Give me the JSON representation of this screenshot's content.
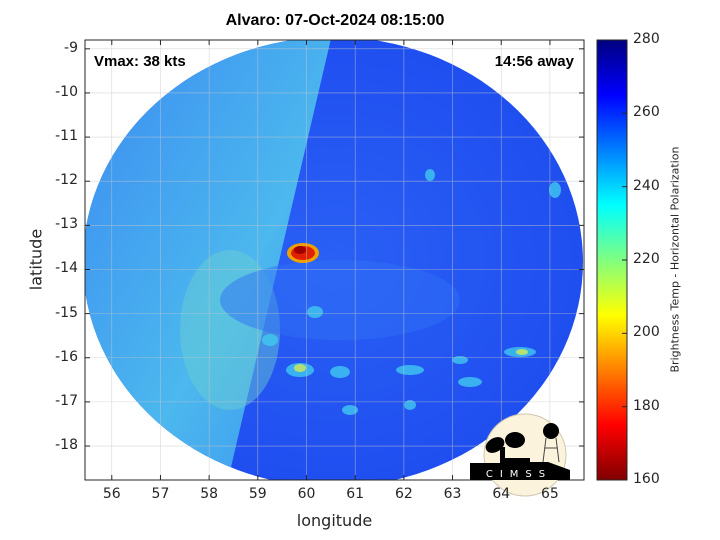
{
  "title": "Alvaro: 07-Oct-2024 08:15:00",
  "annotations": {
    "vmax": "Vmax: 38 kts",
    "time_away": "14:56 away"
  },
  "axes": {
    "xlabel": "longitude",
    "ylabel": "latitude",
    "xticks": [
      "56",
      "57",
      "58",
      "59",
      "60",
      "61",
      "62",
      "63",
      "64",
      "65"
    ],
    "yticks": [
      "-9",
      "-10",
      "-11",
      "-12",
      "-13",
      "-14",
      "-15",
      "-16",
      "-17",
      "-18"
    ],
    "xlim": [
      55.45,
      65.7
    ],
    "ylim": [
      -18.77,
      -8.8
    ],
    "grid": true
  },
  "colorbar": {
    "label": "Brightness Temp - Horizontal Polarization",
    "ticks": [
      "280",
      "260",
      "240",
      "220",
      "200",
      "180",
      "160"
    ],
    "range": [
      160,
      280
    ],
    "colormap": "jet"
  },
  "logo": {
    "text": "CIMSS"
  },
  "colors": {
    "background_blue": "#1a3ff0",
    "west_swath": "#3aa0f0",
    "core": "#d40000"
  }
}
